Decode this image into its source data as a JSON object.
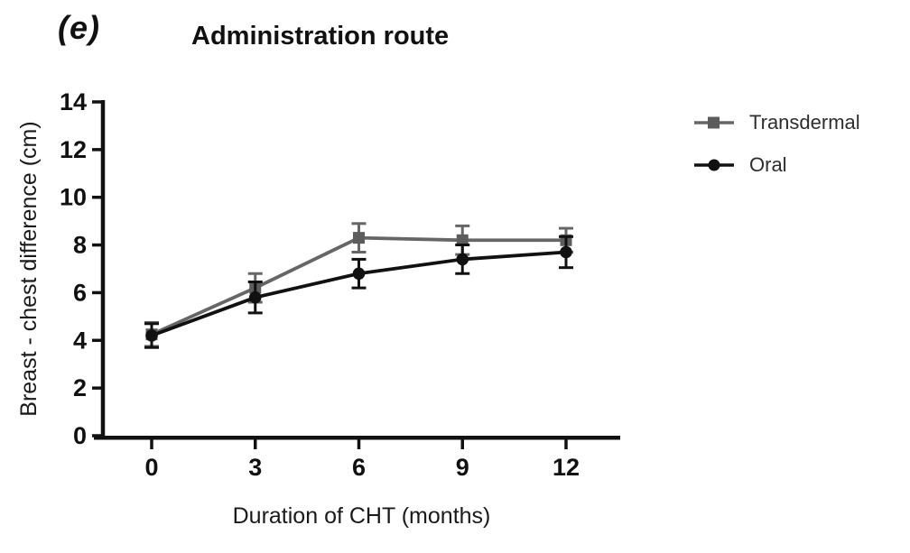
{
  "figure": {
    "panel_label": "(e)",
    "title": "Administration route"
  },
  "chart_data": {
    "type": "line",
    "title": "Administration route",
    "xlabel": "Duration of CHT (months)",
    "ylabel": "Breast - chest difference (cm)",
    "x": [
      0,
      3,
      6,
      9,
      12
    ],
    "xticks": [
      "0",
      "3",
      "6",
      "9",
      "12"
    ],
    "yticks": [
      "0",
      "2",
      "4",
      "6",
      "8",
      "10",
      "12",
      "14"
    ],
    "xlim": [
      0,
      12
    ],
    "ylim": [
      0,
      14
    ],
    "grid": false,
    "legend_position": "right",
    "series": [
      {
        "name": "Transdermal",
        "marker": "square",
        "color": "#666666",
        "values": [
          4.25,
          6.2,
          8.3,
          8.2,
          8.2
        ],
        "errors": [
          0.5,
          0.6,
          0.6,
          0.6,
          0.5
        ]
      },
      {
        "name": "Oral",
        "marker": "circle",
        "color": "#111111",
        "values": [
          4.2,
          5.8,
          6.8,
          7.4,
          7.7
        ],
        "errors": [
          0.5,
          0.65,
          0.6,
          0.6,
          0.65
        ]
      }
    ]
  }
}
